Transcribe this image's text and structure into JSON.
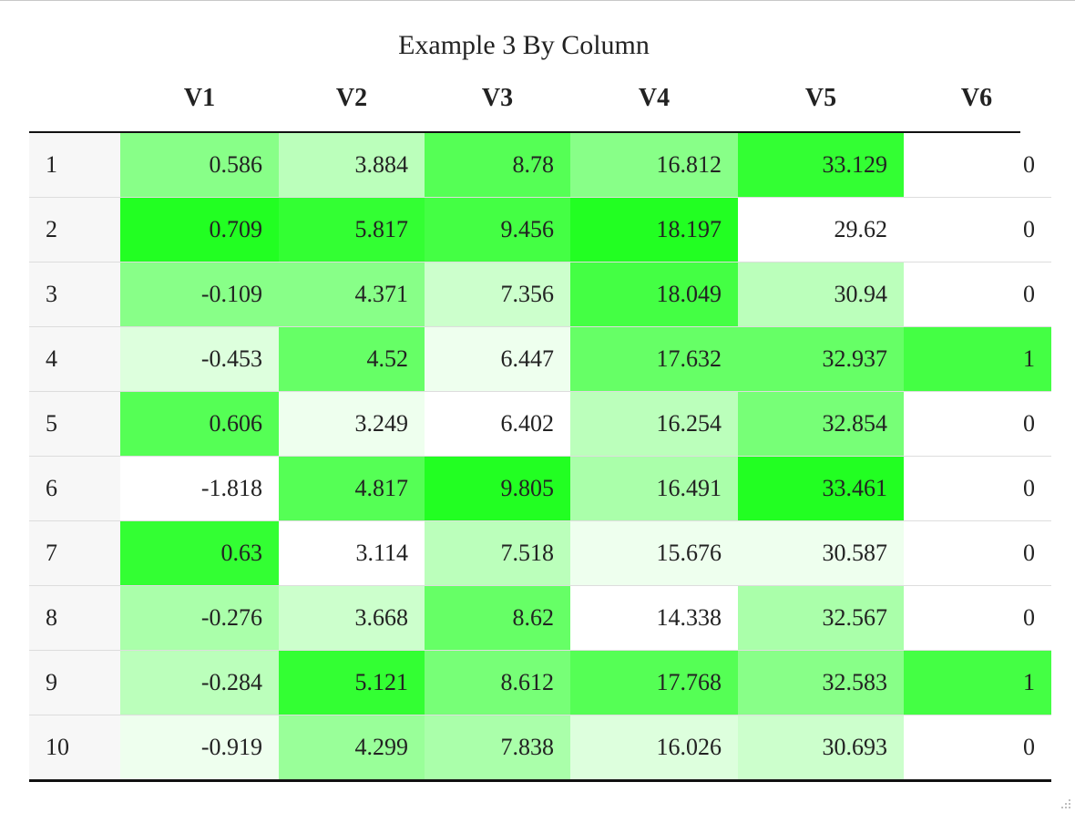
{
  "table": {
    "caption": "Example 3 By Column",
    "columns": [
      "V1",
      "V2",
      "V3",
      "V4",
      "V5",
      "V6"
    ],
    "rows": [
      {
        "index": "1",
        "cells": [
          "0.586",
          "3.884",
          "8.78",
          "16.812",
          "33.129",
          "0"
        ]
      },
      {
        "index": "2",
        "cells": [
          "0.709",
          "5.817",
          "9.456",
          "18.197",
          "29.62",
          "0"
        ]
      },
      {
        "index": "3",
        "cells": [
          "-0.109",
          "4.371",
          "7.356",
          "18.049",
          "30.94",
          "0"
        ]
      },
      {
        "index": "4",
        "cells": [
          "-0.453",
          "4.52",
          "6.447",
          "17.632",
          "32.937",
          "1"
        ]
      },
      {
        "index": "5",
        "cells": [
          "0.606",
          "3.249",
          "6.402",
          "16.254",
          "32.854",
          "0"
        ]
      },
      {
        "index": "6",
        "cells": [
          "-1.818",
          "4.817",
          "9.805",
          "16.491",
          "33.461",
          "0"
        ]
      },
      {
        "index": "7",
        "cells": [
          "0.63",
          "3.114",
          "7.518",
          "15.676",
          "30.587",
          "0"
        ]
      },
      {
        "index": "8",
        "cells": [
          "-0.276",
          "3.668",
          "8.62",
          "14.338",
          "32.567",
          "0"
        ]
      },
      {
        "index": "9",
        "cells": [
          "-0.284",
          "5.121",
          "8.612",
          "17.768",
          "32.583",
          "1"
        ]
      },
      {
        "index": "10",
        "cells": [
          "-0.919",
          "4.299",
          "7.838",
          "16.026",
          "30.693",
          "0"
        ]
      }
    ],
    "cell_colors": [
      [
        "#88ff88",
        "#bbffbb",
        "#55ff55",
        "#88ff88",
        "#33ff33",
        "#ffffff"
      ],
      [
        "#22ff22",
        "#33ff33",
        "#44ff44",
        "#22ff22",
        "#ffffff",
        "#ffffff"
      ],
      [
        "#88ff88",
        "#88ff88",
        "#ccffcc",
        "#44ff44",
        "#bbffbb",
        "#ffffff"
      ],
      [
        "#ddffdd",
        "#66ff66",
        "#eeffee",
        "#66ff66",
        "#66ff66",
        "#44ff44"
      ],
      [
        "#55ff55",
        "#eeffee",
        "#ffffff",
        "#bbffbb",
        "#77ff77",
        "#ffffff"
      ],
      [
        "#ffffff",
        "#55ff55",
        "#22ff22",
        "#aaffaa",
        "#22ff22",
        "#ffffff"
      ],
      [
        "#33ff33",
        "#ffffff",
        "#bbffbb",
        "#eeffee",
        "#eeffee",
        "#ffffff"
      ],
      [
        "#aaffaa",
        "#ccffcc",
        "#66ff66",
        "#ffffff",
        "#aaffaa",
        "#ffffff"
      ],
      [
        "#bbffbb",
        "#33ff33",
        "#77ff77",
        "#55ff55",
        "#88ff88",
        "#44ff44"
      ],
      [
        "#eeffee",
        "#99ff99",
        "#aaffaa",
        "#ddffdd",
        "#ccffcc",
        "#ffffff"
      ]
    ]
  },
  "icons": {
    "resize_grip": "resize-grip-icon"
  }
}
